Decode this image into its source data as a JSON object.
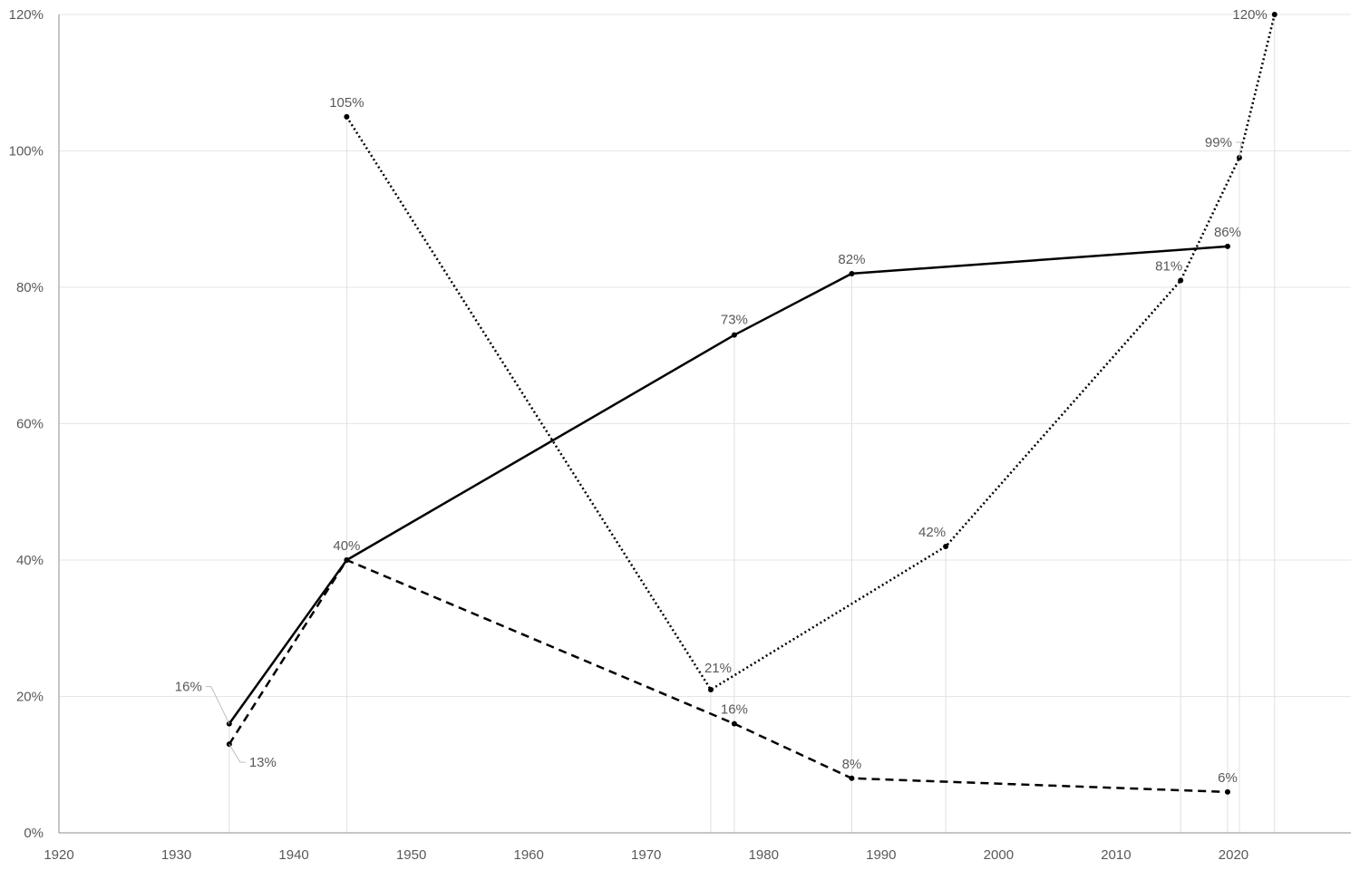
{
  "chart_data": {
    "type": "line",
    "title": "",
    "xlabel": "",
    "ylabel": "",
    "xlim": [
      1920,
      2030
    ],
    "ylim": [
      0,
      120
    ],
    "x_ticks": [
      1920,
      1930,
      1940,
      1950,
      1960,
      1970,
      1980,
      1990,
      2000,
      2010,
      2020
    ],
    "y_ticks": [
      0,
      20,
      40,
      60,
      80,
      100,
      120
    ],
    "y_tick_labels": [
      "0%",
      "20%",
      "40%",
      "60%",
      "80%",
      "100%",
      "120%"
    ],
    "grid": true,
    "legend": "none",
    "series": [
      {
        "style": "solid",
        "color": "#000000",
        "points": [
          {
            "x": 1934.5,
            "y": 16,
            "label": "16%"
          },
          {
            "x": 1944.5,
            "y": 40,
            "label": "40%"
          },
          {
            "x": 1977.5,
            "y": 73,
            "label": "73%"
          },
          {
            "x": 1987.5,
            "y": 82,
            "label": "82%"
          },
          {
            "x": 2019.5,
            "y": 86,
            "label": "86%"
          }
        ]
      },
      {
        "style": "dashed",
        "color": "#000000",
        "points": [
          {
            "x": 1934.5,
            "y": 13,
            "label": "13%"
          },
          {
            "x": 1944.5,
            "y": 40,
            "label": ""
          },
          {
            "x": 1977.5,
            "y": 16,
            "label": "16%"
          },
          {
            "x": 1987.5,
            "y": 8,
            "label": "8%"
          },
          {
            "x": 2019.5,
            "y": 6,
            "label": "6%"
          }
        ]
      },
      {
        "style": "dotted",
        "color": "#000000",
        "points": [
          {
            "x": 1944.5,
            "y": 105,
            "label": "105%"
          },
          {
            "x": 1975.5,
            "y": 21,
            "label": "21%"
          },
          {
            "x": 1995.5,
            "y": 42,
            "label": "42%"
          },
          {
            "x": 2015.5,
            "y": 81,
            "label": "81%"
          },
          {
            "x": 2020.5,
            "y": 99,
            "label": "99%"
          },
          {
            "x": 2023.5,
            "y": 120,
            "label": "120%"
          }
        ]
      }
    ]
  }
}
